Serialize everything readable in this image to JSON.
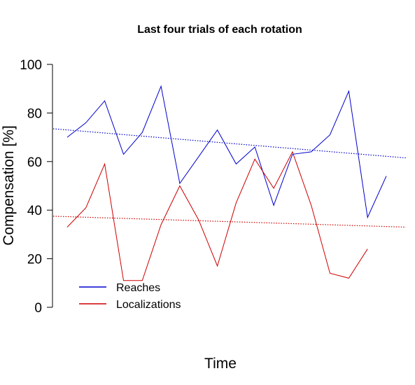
{
  "chart_data": {
    "type": "line",
    "title": "Last four trials of each rotation",
    "xlabel": "Time",
    "ylabel": "Compensation [%]",
    "ylim": [
      0,
      100
    ],
    "yticks": [
      0,
      20,
      40,
      60,
      80,
      100
    ],
    "x": [
      1,
      2,
      3,
      4,
      5,
      6,
      7,
      8,
      9,
      10,
      11,
      12,
      13,
      14,
      15,
      16,
      17,
      18
    ],
    "xlim": [
      1,
      18
    ],
    "grid": false,
    "legend_position": "bottom-left",
    "series": [
      {
        "name": "Reaches",
        "color": "#0000cd",
        "values": [
          70,
          76,
          85,
          63,
          72,
          91,
          51,
          62,
          73,
          59,
          66,
          42,
          63,
          64,
          71,
          89,
          37,
          54
        ],
        "trend": [
          73.5,
          61.5
        ]
      },
      {
        "name": "Localizations",
        "color": "#cd0000",
        "values": [
          33,
          41,
          59,
          11,
          11,
          34,
          50,
          36,
          17,
          43,
          61,
          49,
          64,
          42,
          14,
          12,
          24,
          null
        ],
        "trend": [
          37.5,
          33.0
        ]
      }
    ]
  }
}
